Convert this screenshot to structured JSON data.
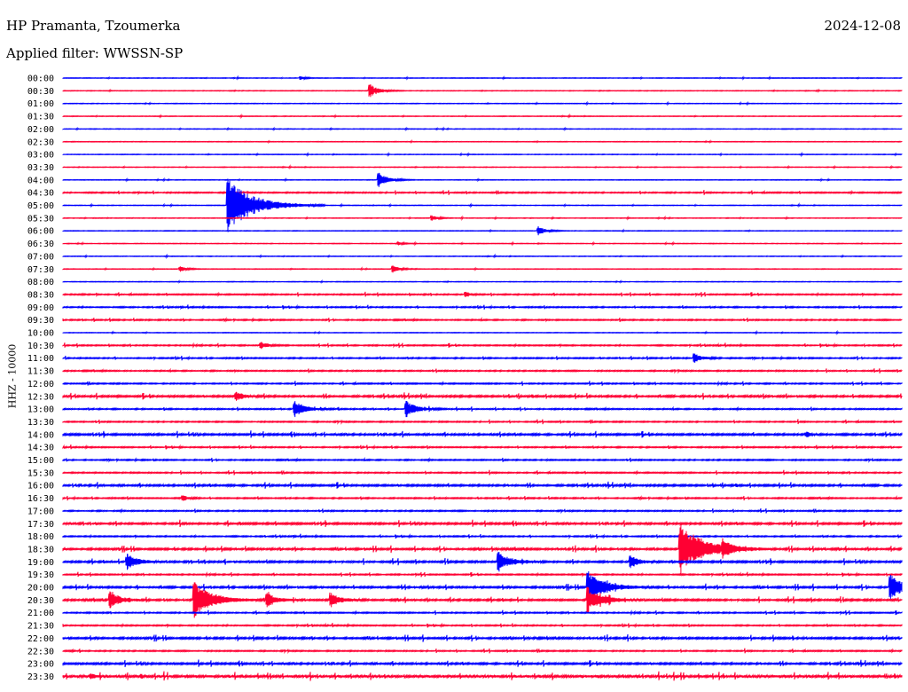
{
  "header": {
    "station": "HP Pramanta, Tzoumerka",
    "date": "2024-12-08",
    "filter": "Applied filter: WWSSN-SP",
    "channel_label": "HHZ - 10000"
  },
  "chart_data": {
    "type": "line",
    "title": "HP Pramanta, Tzoumerka",
    "ylabel": "HHZ - 10000",
    "colors": {
      "even": "#0000ff",
      "odd": "#ff0033"
    },
    "rows": [
      "00:00",
      "00:30",
      "01:00",
      "01:30",
      "02:00",
      "02:30",
      "03:00",
      "03:30",
      "04:00",
      "04:30",
      "05:00",
      "05:30",
      "06:00",
      "06:30",
      "07:00",
      "07:30",
      "08:00",
      "08:30",
      "09:00",
      "09:30",
      "10:00",
      "10:30",
      "11:00",
      "11:30",
      "12:00",
      "12:30",
      "13:00",
      "13:30",
      "14:00",
      "14:30",
      "15:00",
      "15:30",
      "16:00",
      "16:30",
      "17:00",
      "17:30",
      "18:00",
      "18:30",
      "19:00",
      "19:30",
      "20:00",
      "20:30",
      "21:00",
      "21:30",
      "22:00",
      "22:30",
      "23:00",
      "23:30"
    ],
    "row_minutes": 30,
    "noise_level": [
      1,
      1,
      1,
      1,
      1,
      1,
      1,
      1,
      1,
      2,
      1,
      1,
      1,
      1,
      1,
      1,
      1,
      2,
      2,
      2,
      1,
      2,
      2,
      2,
      2,
      3,
      2,
      2,
      3,
      2,
      2,
      2,
      3,
      2,
      2,
      3,
      2,
      3,
      3,
      2,
      3,
      3,
      2,
      2,
      3,
      2,
      3,
      4
    ],
    "events": [
      {
        "row": "00:00",
        "minute": 8.5,
        "amplitude": 2
      },
      {
        "row": "00:30",
        "minute": 11.0,
        "amplitude": 7
      },
      {
        "row": "04:00",
        "minute": 11.3,
        "amplitude": 8
      },
      {
        "row": "05:00",
        "minute": 5.9,
        "amplitude": 30
      },
      {
        "row": "05:30",
        "minute": 13.2,
        "amplitude": 3
      },
      {
        "row": "06:00",
        "minute": 17.0,
        "amplitude": 5
      },
      {
        "row": "06:30",
        "minute": 12.0,
        "amplitude": 2
      },
      {
        "row": "07:30",
        "minute": 4.2,
        "amplitude": 3
      },
      {
        "row": "07:30",
        "minute": 11.8,
        "amplitude": 4
      },
      {
        "row": "08:30",
        "minute": 14.4,
        "amplitude": 3
      },
      {
        "row": "10:30",
        "minute": 7.1,
        "amplitude": 4
      },
      {
        "row": "11:00",
        "minute": 22.6,
        "amplitude": 5
      },
      {
        "row": "12:30",
        "minute": 6.2,
        "amplitude": 5
      },
      {
        "row": "13:00",
        "minute": 8.3,
        "amplitude": 9
      },
      {
        "row": "13:00",
        "minute": 12.3,
        "amplitude": 9
      },
      {
        "row": "14:00",
        "minute": 26.6,
        "amplitude": 3
      },
      {
        "row": "16:30",
        "minute": 4.3,
        "amplitude": 3
      },
      {
        "row": "18:30",
        "minute": 22.1,
        "amplitude": 28
      },
      {
        "row": "18:30",
        "minute": 23.6,
        "amplitude": 6
      },
      {
        "row": "19:00",
        "minute": 2.3,
        "amplitude": 9
      },
      {
        "row": "19:00",
        "minute": 15.6,
        "amplitude": 11
      },
      {
        "row": "19:00",
        "minute": 20.3,
        "amplitude": 7
      },
      {
        "row": "20:00",
        "minute": 18.8,
        "amplitude": 18
      },
      {
        "row": "20:00",
        "minute": 29.6,
        "amplitude": 14
      },
      {
        "row": "20:30",
        "minute": 1.7,
        "amplitude": 9
      },
      {
        "row": "20:30",
        "minute": 4.7,
        "amplitude": 20
      },
      {
        "row": "20:30",
        "minute": 7.3,
        "amplitude": 8
      },
      {
        "row": "20:30",
        "minute": 9.6,
        "amplitude": 8
      },
      {
        "row": "20:30",
        "minute": 18.8,
        "amplitude": 14
      },
      {
        "row": "23:30",
        "minute": 1.0,
        "amplitude": 3
      }
    ]
  }
}
